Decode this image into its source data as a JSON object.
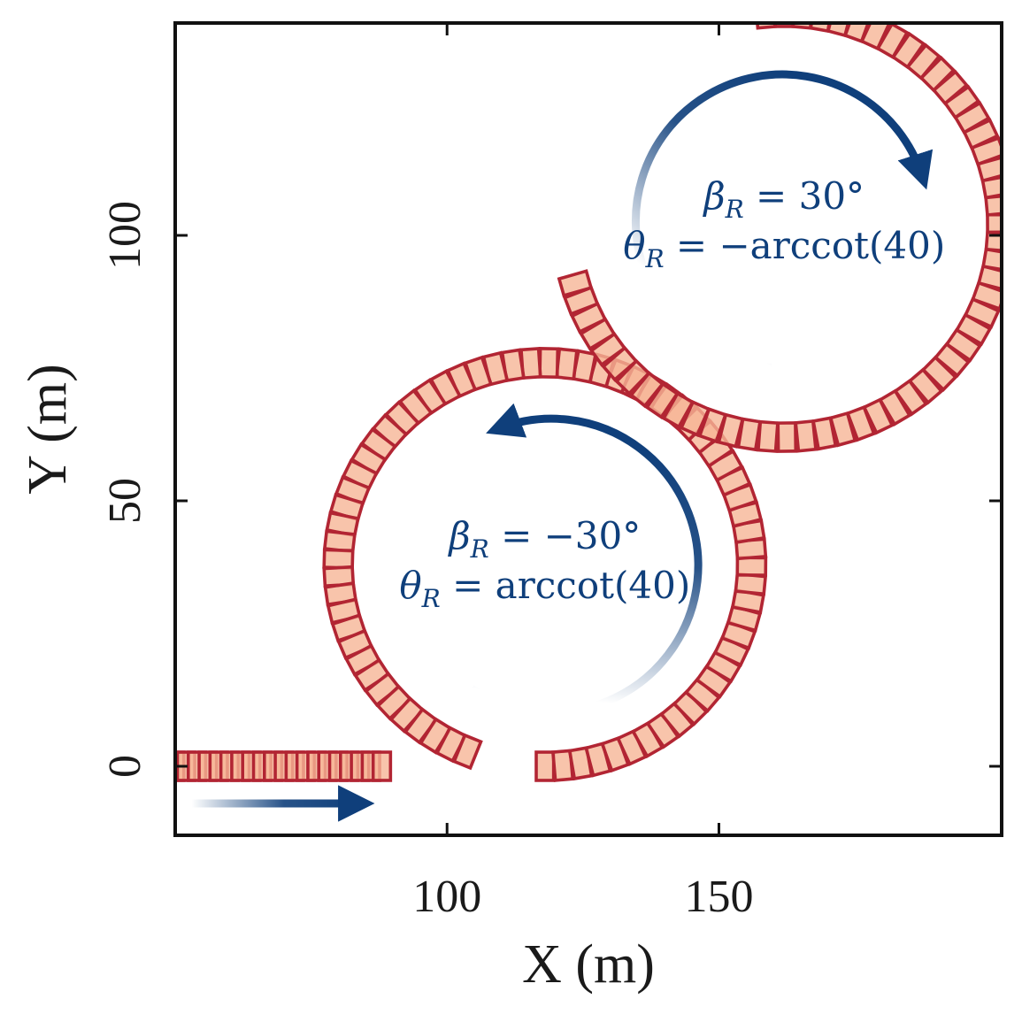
{
  "chart_data": {
    "type": "scatter",
    "xlabel": "X (m)",
    "ylabel": "Y (m)",
    "xlim": [
      50,
      202
    ],
    "ylim": [
      -13,
      140
    ],
    "xticks": [
      {
        "value": 100,
        "label": "100"
      },
      {
        "value": 150,
        "label": "150"
      }
    ],
    "yticks": [
      {
        "value": 0,
        "label": "0"
      },
      {
        "value": 50,
        "label": "50"
      },
      {
        "value": 100,
        "label": "100"
      }
    ],
    "grid": false,
    "colors": {
      "box_edge": "#b22533",
      "box_fill": "#f6b596",
      "arrow": "#0f3f7b",
      "axis": "#111111"
    },
    "segments": [
      {
        "shape": "straight",
        "from": [
          50,
          0
        ],
        "to": [
          88,
          0
        ],
        "heading_deg": 0,
        "step_m": 2.0
      },
      {
        "shape": "arc",
        "center": [
          118,
          38
        ],
        "radius": 38,
        "start_deg": -90,
        "end_deg": 248,
        "direction": "ccw",
        "step_deg": 5
      },
      {
        "shape": "arc",
        "center": [
          162,
          102
        ],
        "radius": 40,
        "start_deg": 196,
        "end_deg": 455,
        "direction": "cw",
        "step_deg": 5
      }
    ],
    "annotations": [
      {
        "lines": [
          [
            {
              "t": "β",
              "k": "sym"
            },
            {
              "t": "R",
              "k": "sub"
            },
            {
              "t": " = −30°",
              "k": "txt"
            }
          ],
          [
            {
              "t": "θ",
              "k": "sym"
            },
            {
              "t": "R",
              "k": "sub"
            },
            {
              "t": " = arccot(40)",
              "k": "txt"
            }
          ]
        ],
        "anchor": [
          118,
          38
        ],
        "color": "#0f3f7b"
      },
      {
        "lines": [
          [
            {
              "t": "β",
              "k": "sym"
            },
            {
              "t": "R",
              "k": "sub"
            },
            {
              "t": " = 30°",
              "k": "txt"
            }
          ],
          [
            {
              "t": "θ",
              "k": "sym"
            },
            {
              "t": "R",
              "k": "sub"
            },
            {
              "t": " = −arccot(40)",
              "k": "txt"
            }
          ]
        ],
        "anchor": [
          162,
          102
        ],
        "color": "#0f3f7b"
      }
    ],
    "direction_arrows": [
      {
        "shape": "line",
        "from": [
          53,
          -7
        ],
        "to": [
          84,
          -7
        ]
      },
      {
        "shape": "arc",
        "center": [
          118,
          38
        ],
        "radius": 27,
        "start_deg": -120,
        "end_deg": 108,
        "direction": "ccw"
      },
      {
        "shape": "arc",
        "center": [
          162,
          102
        ],
        "radius": 27,
        "start_deg": 265,
        "end_deg": 20,
        "direction": "cw"
      }
    ]
  }
}
